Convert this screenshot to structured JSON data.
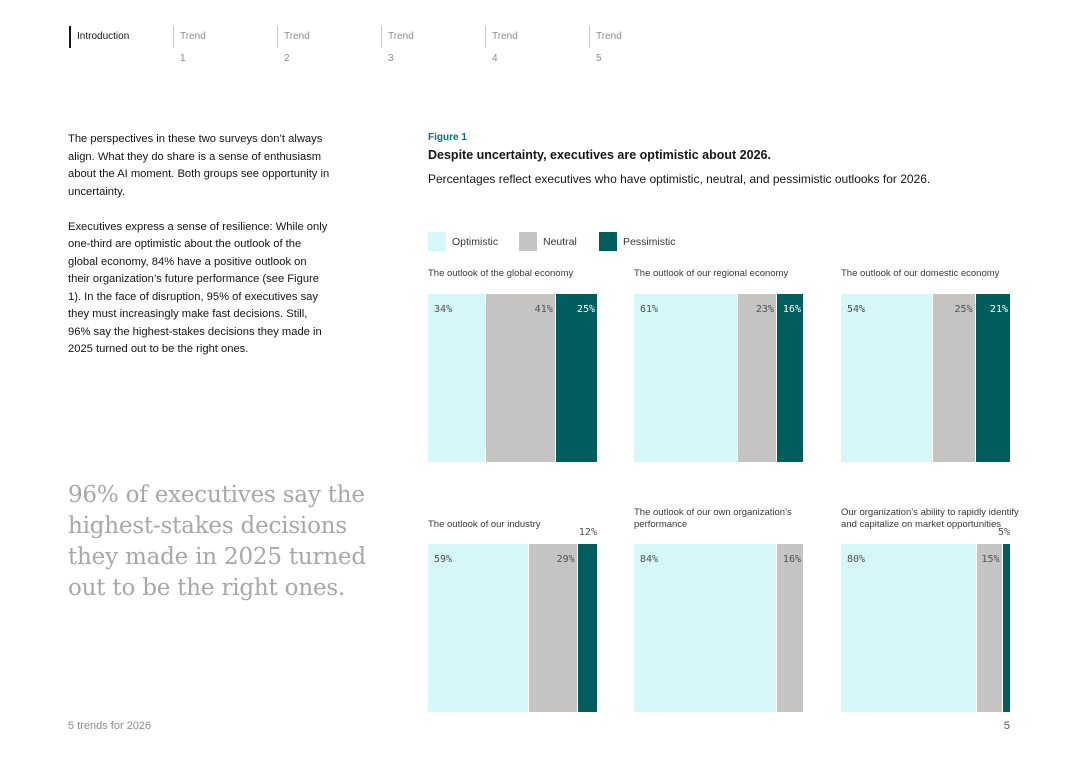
{
  "colors": {
    "optimistic": "#d5f7f7",
    "neutral": "#c6c3c3",
    "pessimistic": "#005d5d",
    "figure_label": "#00766c"
  },
  "nav": {
    "items": [
      "Introduction",
      "Trend 1",
      "Trend 2",
      "Trend 3",
      "Trend 4",
      "Trend 5"
    ],
    "active": "Introduction"
  },
  "body": {
    "paragraph1": "The perspectives in these two surveys don’t always align. What they do share is a sense of enthusiasm about the AI moment. Both groups see opportunity in uncertainty.",
    "paragraph2": "Executives express a sense of resilience: While only one-third are optimistic about the outlook of the global economy, 84% have a positive outlook on their organization’s future performance (see Figure 1). In the face of disruption, 95% of executives say they must increasingly make fast decisions. Still, 96% say the highest-stakes decisions they made in 2025 turned out to be the right ones."
  },
  "pull_quote": "96% of executives say the highest-stakes decisions they made in 2025 turned out to be the right ones.",
  "figure": {
    "label": "Figure 1",
    "title": "Despite uncertainty, executives are optimistic about 2026.",
    "subtitle": "Percentages reflect executives who have optimistic, neutral, and pessimistic outlooks for 2026."
  },
  "legend": [
    "Optimistic",
    "Neutral",
    "Pessimistic"
  ],
  "chart_data": [
    {
      "type": "bar",
      "stacked": true,
      "title": "The outlook of the global economy",
      "categories": [
        "Optimistic",
        "Neutral",
        "Pessimistic"
      ],
      "values": [
        34,
        41,
        25
      ],
      "labels": [
        "34%",
        "41%",
        "25%"
      ]
    },
    {
      "type": "bar",
      "stacked": true,
      "title": "The outlook of our regional economy",
      "categories": [
        "Optimistic",
        "Neutral",
        "Pessimistic"
      ],
      "values": [
        61,
        23,
        16
      ],
      "labels": [
        "61%",
        "23%",
        "16%"
      ]
    },
    {
      "type": "bar",
      "stacked": true,
      "title": "The outlook of our domestic economy",
      "categories": [
        "Optimistic",
        "Neutral",
        "Pessimistic"
      ],
      "values": [
        54,
        25,
        21
      ],
      "labels": [
        "54%",
        "25%",
        "21%"
      ]
    },
    {
      "type": "bar",
      "stacked": true,
      "title": "The outlook of our industry",
      "categories": [
        "Optimistic",
        "Neutral",
        "Pessimistic"
      ],
      "values": [
        59,
        29,
        12
      ],
      "labels": [
        "59%",
        "29%",
        "12%"
      ]
    },
    {
      "type": "bar",
      "stacked": true,
      "title": "The outlook of our own organization’s performance",
      "categories": [
        "Optimistic",
        "Neutral",
        "Pessimistic"
      ],
      "values": [
        84,
        16,
        0
      ],
      "labels": [
        "84%",
        "16%",
        ""
      ]
    },
    {
      "type": "bar",
      "stacked": true,
      "title": "Our organization’s ability to rapidly identify and capitalize on market opportunities",
      "categories": [
        "Optimistic",
        "Neutral",
        "Pessimistic"
      ],
      "values": [
        80,
        15,
        5
      ],
      "labels": [
        "80%",
        "15%",
        "5%"
      ]
    }
  ],
  "footer": {
    "left": "5 trends for 2026",
    "page_number": "5"
  }
}
